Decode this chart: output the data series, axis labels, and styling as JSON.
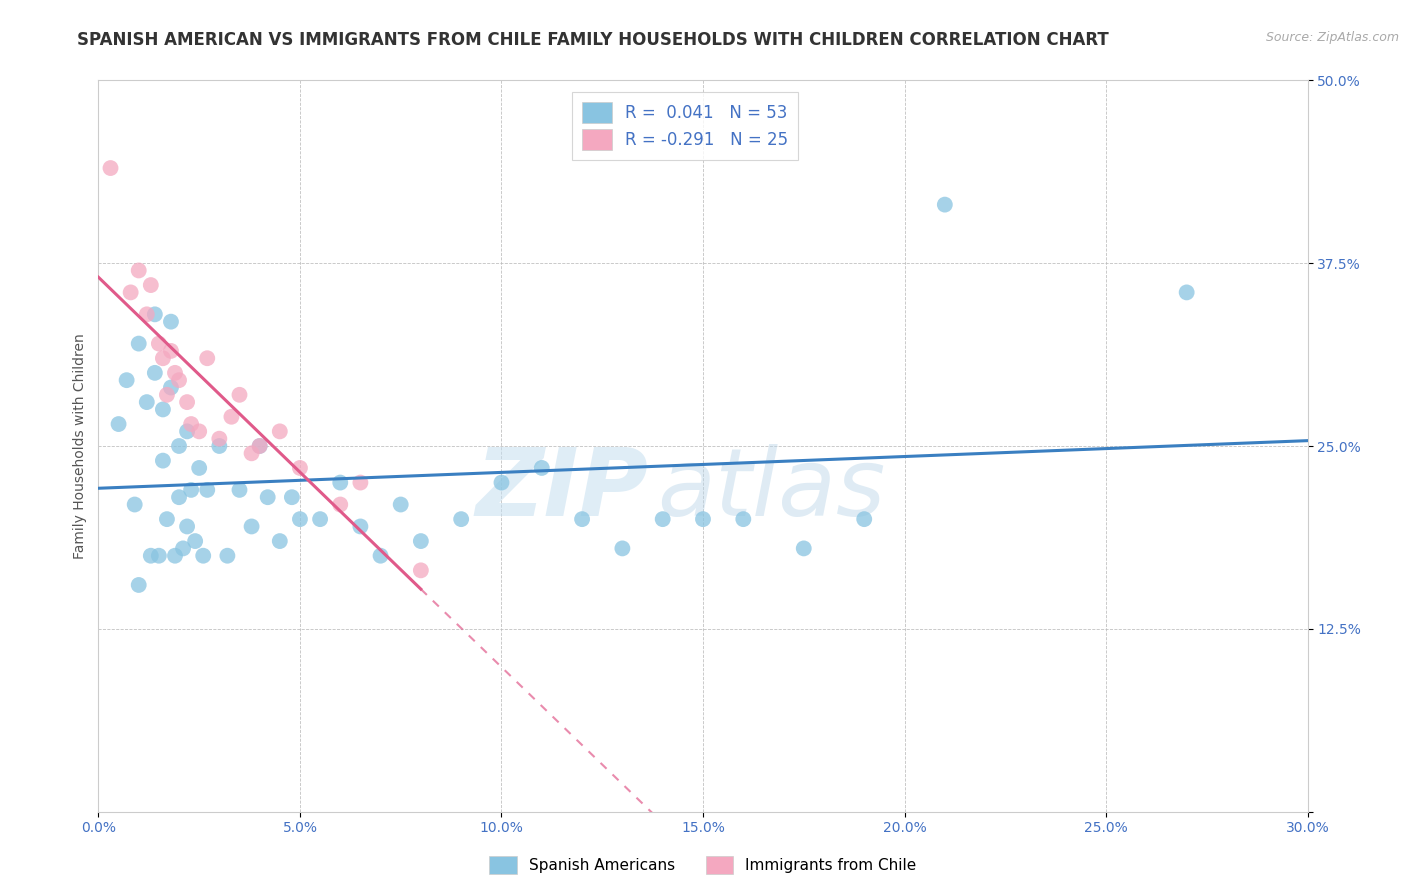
{
  "title": "SPANISH AMERICAN VS IMMIGRANTS FROM CHILE FAMILY HOUSEHOLDS WITH CHILDREN CORRELATION CHART",
  "source": "Source: ZipAtlas.com",
  "ylabel": "Family Households with Children",
  "xlim": [
    0.0,
    0.3
  ],
  "ylim": [
    0.0,
    0.5
  ],
  "xticks": [
    0.0,
    0.05,
    0.1,
    0.15,
    0.2,
    0.25,
    0.3
  ],
  "xticklabels": [
    "0.0%",
    "5.0%",
    "10.0%",
    "15.0%",
    "20.0%",
    "25.0%",
    "30.0%"
  ],
  "yticks": [
    0.0,
    0.125,
    0.25,
    0.375,
    0.5
  ],
  "yticklabels": [
    "",
    "12.5%",
    "25.0%",
    "37.5%",
    "50.0%"
  ],
  "blue_color": "#89c4e1",
  "pink_color": "#f4a8c0",
  "blue_line_color": "#3a7fc1",
  "pink_line_color": "#e05a8a",
  "blue_R": 0.041,
  "blue_N": 53,
  "pink_R": -0.291,
  "pink_N": 25,
  "legend_label_blue": "Spanish Americans",
  "legend_label_pink": "Immigrants from Chile",
  "watermark_text": "ZIP",
  "watermark_text2": "atlas",
  "blue_scatter_x": [
    0.005,
    0.007,
    0.009,
    0.01,
    0.01,
    0.012,
    0.013,
    0.014,
    0.014,
    0.015,
    0.016,
    0.016,
    0.017,
    0.018,
    0.018,
    0.019,
    0.02,
    0.02,
    0.021,
    0.022,
    0.022,
    0.023,
    0.024,
    0.025,
    0.026,
    0.027,
    0.03,
    0.032,
    0.035,
    0.038,
    0.04,
    0.042,
    0.045,
    0.048,
    0.05,
    0.055,
    0.06,
    0.065,
    0.07,
    0.075,
    0.08,
    0.09,
    0.1,
    0.11,
    0.12,
    0.13,
    0.14,
    0.15,
    0.16,
    0.175,
    0.19,
    0.21,
    0.27
  ],
  "blue_scatter_y": [
    0.265,
    0.295,
    0.21,
    0.155,
    0.32,
    0.28,
    0.175,
    0.3,
    0.34,
    0.175,
    0.24,
    0.275,
    0.2,
    0.29,
    0.335,
    0.175,
    0.215,
    0.25,
    0.18,
    0.195,
    0.26,
    0.22,
    0.185,
    0.235,
    0.175,
    0.22,
    0.25,
    0.175,
    0.22,
    0.195,
    0.25,
    0.215,
    0.185,
    0.215,
    0.2,
    0.2,
    0.225,
    0.195,
    0.175,
    0.21,
    0.185,
    0.2,
    0.225,
    0.235,
    0.2,
    0.18,
    0.2,
    0.2,
    0.2,
    0.18,
    0.2,
    0.415,
    0.355
  ],
  "pink_scatter_x": [
    0.003,
    0.008,
    0.01,
    0.012,
    0.013,
    0.015,
    0.016,
    0.017,
    0.018,
    0.019,
    0.02,
    0.022,
    0.023,
    0.025,
    0.027,
    0.03,
    0.033,
    0.035,
    0.038,
    0.04,
    0.045,
    0.05,
    0.06,
    0.065,
    0.08
  ],
  "pink_scatter_y": [
    0.44,
    0.355,
    0.37,
    0.34,
    0.36,
    0.32,
    0.31,
    0.285,
    0.315,
    0.3,
    0.295,
    0.28,
    0.265,
    0.26,
    0.31,
    0.255,
    0.27,
    0.285,
    0.245,
    0.25,
    0.26,
    0.235,
    0.21,
    0.225,
    0.165
  ],
  "title_fontsize": 12,
  "axis_label_fontsize": 10,
  "tick_fontsize": 10,
  "legend_fontsize": 12,
  "tick_color": "#4472c4"
}
